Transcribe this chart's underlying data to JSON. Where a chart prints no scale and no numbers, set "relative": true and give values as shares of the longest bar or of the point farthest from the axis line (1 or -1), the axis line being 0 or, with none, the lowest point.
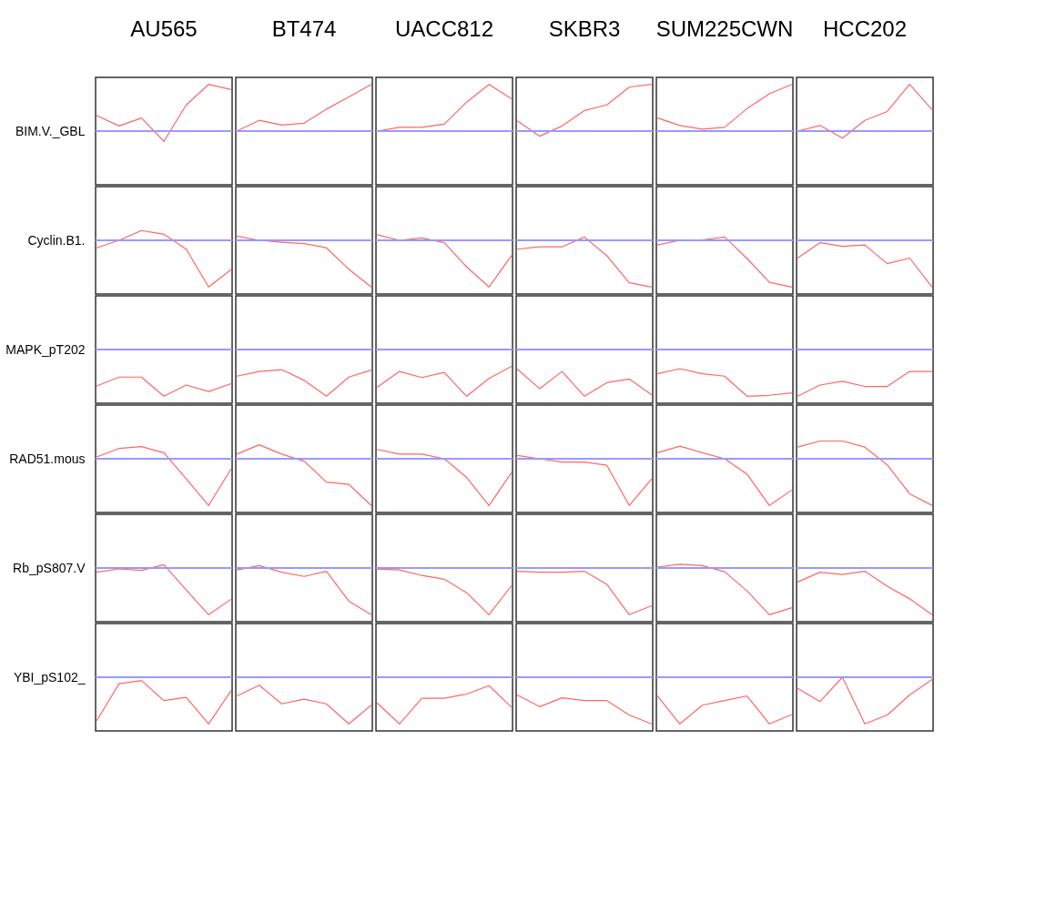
{
  "chart_data": [
    {
      "type": "line",
      "title": "AU565",
      "ylabel": "BIM.V._GBL",
      "categories": [
        null,
        null,
        null,
        null,
        null,
        null,
        null
      ],
      "relative": true,
      "tick_labels": false,
      "series": [
        {
          "color": "#ff6666",
          "values": [
            0.33,
            0.11,
            0.28,
            -0.22,
            0.56,
            1,
            0.89
          ]
        }
      ],
      "ref_lines": [
        {
          "axis": "y",
          "value": 0,
          "color": "#9999ff"
        }
      ]
    },
    {
      "type": "line",
      "title": "BT474",
      "categories": [
        null,
        null,
        null,
        null,
        null,
        null,
        null
      ],
      "relative": true,
      "tick_labels": false,
      "series": [
        {
          "color": "#ff6666",
          "values": [
            0,
            0.23,
            0.13,
            0.17,
            0.47,
            0.73,
            1
          ]
        }
      ],
      "ref_lines": [
        {
          "axis": "y",
          "value": 0,
          "color": "#9999ff"
        }
      ]
    },
    {
      "type": "line",
      "title": "UACC812",
      "categories": [
        null,
        null,
        null,
        null,
        null,
        null,
        null
      ],
      "relative": true,
      "tick_labels": false,
      "series": [
        {
          "color": "#ff6666",
          "values": [
            0,
            0.08,
            0.08,
            0.15,
            0.62,
            1,
            0.69
          ]
        }
      ],
      "ref_lines": [
        {
          "axis": "y",
          "value": 0,
          "color": "#9999ff"
        }
      ]
    },
    {
      "type": "line",
      "title": "SKBR3",
      "categories": [
        null,
        null,
        null,
        null,
        null,
        null,
        null
      ],
      "relative": true,
      "tick_labels": false,
      "series": [
        {
          "color": "#ff6666",
          "values": [
            0.22,
            -0.11,
            0.11,
            0.44,
            0.56,
            0.94,
            1
          ]
        }
      ],
      "ref_lines": [
        {
          "axis": "y",
          "value": 0,
          "color": "#9999ff"
        }
      ]
    },
    {
      "type": "line",
      "title": "SUM225CWN",
      "categories": [
        null,
        null,
        null,
        null,
        null,
        null,
        null
      ],
      "relative": true,
      "tick_labels": false,
      "series": [
        {
          "color": "#ff6666",
          "values": [
            0.28,
            0.12,
            0.04,
            0.08,
            0.48,
            0.8,
            1
          ]
        }
      ],
      "ref_lines": [
        {
          "axis": "y",
          "value": 0,
          "color": "#9999ff"
        }
      ]
    },
    {
      "type": "line",
      "title": "HCC202",
      "categories": [
        null,
        null,
        null,
        null,
        null,
        null,
        null
      ],
      "relative": true,
      "tick_labels": false,
      "series": [
        {
          "color": "#ff6666",
          "values": [
            0,
            0.12,
            -0.15,
            0.23,
            0.42,
            1,
            0.46
          ]
        }
      ],
      "ref_lines": [
        {
          "axis": "y",
          "value": 0,
          "color": "#9999ff"
        }
      ]
    },
    {
      "type": "line",
      "ylabel": "Cyclin.B1.",
      "categories": [
        null,
        null,
        null,
        null,
        null,
        null,
        null
      ],
      "relative": true,
      "tick_labels": false,
      "series": [
        {
          "color": "#ff6666",
          "values": [
            -0.16,
            0,
            0.21,
            0.13,
            -0.19,
            -1,
            -0.63
          ]
        }
      ],
      "ref_lines": [
        {
          "axis": "y",
          "value": 0,
          "color": "#9999ff"
        }
      ]
    },
    {
      "type": "line",
      "categories": [
        null,
        null,
        null,
        null,
        null,
        null,
        null
      ],
      "relative": true,
      "tick_labels": false,
      "series": [
        {
          "color": "#ff6666",
          "values": [
            0.09,
            0,
            -0.04,
            -0.07,
            -0.16,
            -0.62,
            -1
          ]
        }
      ],
      "ref_lines": [
        {
          "axis": "y",
          "value": 0,
          "color": "#9999ff"
        }
      ]
    },
    {
      "type": "line",
      "categories": [
        null,
        null,
        null,
        null,
        null,
        null,
        null
      ],
      "relative": true,
      "tick_labels": false,
      "series": [
        {
          "color": "#ff6666",
          "values": [
            0.12,
            0,
            0.05,
            -0.05,
            -0.57,
            -1,
            -0.33
          ]
        }
      ],
      "ref_lines": [
        {
          "axis": "y",
          "value": 0,
          "color": "#9999ff"
        }
      ]
    },
    {
      "type": "line",
      "categories": [
        null,
        null,
        null,
        null,
        null,
        null,
        null
      ],
      "relative": true,
      "tick_labels": false,
      "series": [
        {
          "color": "#ff6666",
          "values": [
            -0.19,
            -0.14,
            -0.14,
            0.07,
            -0.33,
            -0.91,
            -1
          ]
        }
      ],
      "ref_lines": [
        {
          "axis": "y",
          "value": 0,
          "color": "#9999ff"
        }
      ]
    },
    {
      "type": "line",
      "categories": [
        null,
        null,
        null,
        null,
        null,
        null,
        null
      ],
      "relative": true,
      "tick_labels": false,
      "series": [
        {
          "color": "#ff6666",
          "values": [
            -0.1,
            0,
            0.01,
            0.07,
            -0.39,
            -0.9,
            -1
          ]
        }
      ],
      "ref_lines": [
        {
          "axis": "y",
          "value": 0,
          "color": "#9999ff"
        }
      ]
    },
    {
      "type": "line",
      "categories": [
        null,
        null,
        null,
        null,
        null,
        null,
        null
      ],
      "relative": true,
      "tick_labels": false,
      "series": [
        {
          "color": "#ff6666",
          "values": [
            -0.38,
            -0.05,
            -0.13,
            -0.1,
            -0.5,
            -0.38,
            -1
          ]
        }
      ],
      "ref_lines": [
        {
          "axis": "y",
          "value": 0,
          "color": "#9999ff"
        }
      ]
    },
    {
      "type": "line",
      "ylabel": "MAPK_pT202",
      "categories": [
        null,
        null,
        null,
        null,
        null,
        null,
        null
      ],
      "relative": true,
      "tick_labels": false,
      "series": [
        {
          "color": "#ff6666",
          "values": [
            -0.78,
            -0.59,
            -0.59,
            -1,
            -0.76,
            -0.9,
            -0.73
          ]
        }
      ],
      "ref_lines": [
        {
          "axis": "y",
          "value": 0,
          "color": "#9999ff"
        }
      ]
    },
    {
      "type": "line",
      "categories": [
        null,
        null,
        null,
        null,
        null,
        null,
        null
      ],
      "relative": true,
      "tick_labels": false,
      "series": [
        {
          "color": "#ff6666",
          "values": [
            -0.57,
            -0.47,
            -0.43,
            -0.66,
            -1,
            -0.59,
            -0.44
          ]
        }
      ],
      "ref_lines": [
        {
          "axis": "y",
          "value": 0,
          "color": "#9999ff"
        }
      ]
    },
    {
      "type": "line",
      "categories": [
        null,
        null,
        null,
        null,
        null,
        null,
        null
      ],
      "relative": true,
      "tick_labels": false,
      "series": [
        {
          "color": "#ff6666",
          "values": [
            -0.81,
            -0.47,
            -0.6,
            -0.49,
            -1,
            -0.62,
            -0.36
          ]
        }
      ],
      "ref_lines": [
        {
          "axis": "y",
          "value": 0,
          "color": "#9999ff"
        }
      ]
    },
    {
      "type": "line",
      "categories": [
        null,
        null,
        null,
        null,
        null,
        null,
        null
      ],
      "relative": true,
      "tick_labels": false,
      "series": [
        {
          "color": "#ff6666",
          "values": [
            -0.42,
            -0.84,
            -0.47,
            -1,
            -0.71,
            -0.63,
            -0.97
          ]
        }
      ],
      "ref_lines": [
        {
          "axis": "y",
          "value": 0,
          "color": "#9999ff"
        }
      ]
    },
    {
      "type": "line",
      "categories": [
        null,
        null,
        null,
        null,
        null,
        null,
        null
      ],
      "relative": true,
      "tick_labels": false,
      "series": [
        {
          "color": "#ff6666",
          "values": [
            -0.52,
            -0.41,
            -0.52,
            -0.57,
            -1,
            -0.98,
            -0.93
          ]
        }
      ],
      "ref_lines": [
        {
          "axis": "y",
          "value": 0,
          "color": "#9999ff"
        }
      ]
    },
    {
      "type": "line",
      "categories": [
        null,
        null,
        null,
        null,
        null,
        null,
        null
      ],
      "relative": true,
      "tick_labels": false,
      "series": [
        {
          "color": "#ff6666",
          "values": [
            -1,
            -0.76,
            -0.68,
            -0.79,
            -0.79,
            -0.47,
            -0.47
          ]
        }
      ],
      "ref_lines": [
        {
          "axis": "y",
          "value": 0,
          "color": "#9999ff"
        }
      ]
    },
    {
      "type": "line",
      "ylabel": "RAD51.mous",
      "categories": [
        null,
        null,
        null,
        null,
        null,
        null,
        null
      ],
      "relative": true,
      "tick_labels": false,
      "series": [
        {
          "color": "#ff6666",
          "values": [
            0.04,
            0.22,
            0.26,
            0.13,
            -0.43,
            -1,
            -0.22
          ]
        }
      ],
      "ref_lines": [
        {
          "axis": "y",
          "value": 0,
          "color": "#9999ff"
        }
      ]
    },
    {
      "type": "line",
      "categories": [
        null,
        null,
        null,
        null,
        null,
        null,
        null
      ],
      "relative": true,
      "tick_labels": false,
      "series": [
        {
          "color": "#ff6666",
          "values": [
            0.1,
            0.3,
            0.1,
            -0.05,
            -0.5,
            -0.55,
            -1
          ]
        }
      ],
      "ref_lines": [
        {
          "axis": "y",
          "value": 0,
          "color": "#9999ff"
        }
      ]
    },
    {
      "type": "line",
      "categories": [
        null,
        null,
        null,
        null,
        null,
        null,
        null
      ],
      "relative": true,
      "tick_labels": false,
      "series": [
        {
          "color": "#ff6666",
          "values": [
            0.2,
            0.1,
            0.1,
            0,
            -0.4,
            -1,
            -0.3
          ]
        }
      ],
      "ref_lines": [
        {
          "axis": "y",
          "value": 0,
          "color": "#9999ff"
        }
      ]
    },
    {
      "type": "line",
      "categories": [
        null,
        null,
        null,
        null,
        null,
        null,
        null
      ],
      "relative": true,
      "tick_labels": false,
      "series": [
        {
          "color": "#ff6666",
          "values": [
            0.07,
            0,
            -0.07,
            -0.07,
            -0.14,
            -1,
            -0.43
          ]
        }
      ],
      "ref_lines": [
        {
          "axis": "y",
          "value": 0,
          "color": "#9999ff"
        }
      ]
    },
    {
      "type": "line",
      "categories": [
        null,
        null,
        null,
        null,
        null,
        null,
        null
      ],
      "relative": true,
      "tick_labels": false,
      "series": [
        {
          "color": "#ff6666",
          "values": [
            0.13,
            0.27,
            0.13,
            0,
            -0.33,
            -1,
            -0.67
          ]
        }
      ],
      "ref_lines": [
        {
          "axis": "y",
          "value": 0,
          "color": "#9999ff"
        }
      ]
    },
    {
      "type": "line",
      "categories": [
        null,
        null,
        null,
        null,
        null,
        null,
        null
      ],
      "relative": true,
      "tick_labels": false,
      "series": [
        {
          "color": "#ff6666",
          "values": [
            0.25,
            0.38,
            0.38,
            0.25,
            -0.13,
            -0.75,
            -1
          ]
        }
      ],
      "ref_lines": [
        {
          "axis": "y",
          "value": 0,
          "color": "#9999ff"
        }
      ]
    },
    {
      "type": "line",
      "ylabel": "Rb_pS807.V",
      "categories": [
        null,
        null,
        null,
        null,
        null,
        null,
        null
      ],
      "relative": true,
      "tick_labels": false,
      "series": [
        {
          "color": "#ff6666",
          "values": [
            -0.09,
            -0.02,
            -0.05,
            0.07,
            -0.47,
            -1,
            -0.67
          ]
        }
      ],
      "ref_lines": [
        {
          "axis": "y",
          "value": 0,
          "color": "#9999ff"
        }
      ]
    },
    {
      "type": "line",
      "categories": [
        null,
        null,
        null,
        null,
        null,
        null,
        null
      ],
      "relative": true,
      "tick_labels": false,
      "series": [
        {
          "color": "#ff6666",
          "values": [
            -0.04,
            0.05,
            -0.09,
            -0.18,
            -0.07,
            -0.71,
            -1
          ]
        }
      ],
      "ref_lines": [
        {
          "axis": "y",
          "value": 0,
          "color": "#9999ff"
        }
      ]
    },
    {
      "type": "line",
      "categories": [
        null,
        null,
        null,
        null,
        null,
        null,
        null
      ],
      "relative": true,
      "tick_labels": false,
      "series": [
        {
          "color": "#ff6666",
          "values": [
            -0.02,
            -0.04,
            -0.16,
            -0.24,
            -0.53,
            -1,
            -0.38
          ]
        }
      ],
      "ref_lines": [
        {
          "axis": "y",
          "value": 0,
          "color": "#9999ff"
        }
      ]
    },
    {
      "type": "line",
      "categories": [
        null,
        null,
        null,
        null,
        null,
        null,
        null
      ],
      "relative": true,
      "tick_labels": false,
      "series": [
        {
          "color": "#ff6666",
          "values": [
            -0.07,
            -0.09,
            -0.09,
            -0.07,
            -0.35,
            -1,
            -0.81
          ]
        }
      ],
      "ref_lines": [
        {
          "axis": "y",
          "value": 0,
          "color": "#9999ff"
        }
      ]
    },
    {
      "type": "line",
      "categories": [
        null,
        null,
        null,
        null,
        null,
        null,
        null
      ],
      "relative": true,
      "tick_labels": false,
      "series": [
        {
          "color": "#ff6666",
          "values": [
            0.02,
            0.08,
            0.05,
            -0.08,
            -0.49,
            -1,
            -0.85
          ]
        }
      ],
      "ref_lines": [
        {
          "axis": "y",
          "value": 0,
          "color": "#9999ff"
        }
      ]
    },
    {
      "type": "line",
      "categories": [
        null,
        null,
        null,
        null,
        null,
        null,
        null
      ],
      "relative": true,
      "tick_labels": false,
      "series": [
        {
          "color": "#ff6666",
          "values": [
            -0.3,
            -0.09,
            -0.14,
            -0.07,
            -0.39,
            -0.66,
            -1
          ]
        }
      ],
      "ref_lines": [
        {
          "axis": "y",
          "value": 0,
          "color": "#9999ff"
        }
      ]
    },
    {
      "type": "line",
      "ylabel": "YBI_pS102_",
      "categories": [
        null,
        null,
        null,
        null,
        null,
        null,
        null
      ],
      "relative": true,
      "tick_labels": false,
      "series": [
        {
          "color": "#ff6666",
          "values": [
            -0.93,
            -0.14,
            -0.07,
            -0.5,
            -0.43,
            -1,
            -0.29
          ]
        }
      ],
      "ref_lines": [
        {
          "axis": "y",
          "value": 0,
          "color": "#9999ff"
        }
      ]
    },
    {
      "type": "line",
      "categories": [
        null,
        null,
        null,
        null,
        null,
        null,
        null
      ],
      "relative": true,
      "tick_labels": false,
      "series": [
        {
          "color": "#ff6666",
          "values": [
            -0.4,
            -0.17,
            -0.57,
            -0.47,
            -0.57,
            -1,
            -0.6
          ]
        }
      ],
      "ref_lines": [
        {
          "axis": "y",
          "value": 0,
          "color": "#9999ff"
        }
      ]
    },
    {
      "type": "line",
      "categories": [
        null,
        null,
        null,
        null,
        null,
        null,
        null
      ],
      "relative": true,
      "tick_labels": false,
      "series": [
        {
          "color": "#ff6666",
          "values": [
            -0.55,
            -1,
            -0.45,
            -0.45,
            -0.36,
            -0.18,
            -0.64
          ]
        }
      ],
      "ref_lines": [
        {
          "axis": "y",
          "value": 0,
          "color": "#9999ff"
        }
      ]
    },
    {
      "type": "line",
      "categories": [
        null,
        null,
        null,
        null,
        null,
        null,
        null
      ],
      "relative": true,
      "tick_labels": false,
      "series": [
        {
          "color": "#ff6666",
          "values": [
            -0.38,
            -0.63,
            -0.44,
            -0.5,
            -0.5,
            -0.81,
            -1
          ]
        }
      ],
      "ref_lines": [
        {
          "axis": "y",
          "value": 0,
          "color": "#9999ff"
        }
      ]
    },
    {
      "type": "line",
      "categories": [
        null,
        null,
        null,
        null,
        null,
        null,
        null
      ],
      "relative": true,
      "tick_labels": false,
      "series": [
        {
          "color": "#ff6666",
          "values": [
            -0.4,
            -1,
            -0.6,
            -0.5,
            -0.4,
            -1,
            -0.8
          ]
        }
      ],
      "ref_lines": [
        {
          "axis": "y",
          "value": 0,
          "color": "#9999ff"
        }
      ]
    },
    {
      "type": "line",
      "categories": [
        null,
        null,
        null,
        null,
        null,
        null,
        null
      ],
      "relative": true,
      "tick_labels": false,
      "series": [
        {
          "color": "#ff6666",
          "values": [
            -0.24,
            -0.52,
            0,
            -1,
            -0.81,
            -0.38,
            -0.05
          ]
        }
      ],
      "ref_lines": [
        {
          "axis": "y",
          "value": 0,
          "color": "#9999ff"
        }
      ]
    }
  ]
}
